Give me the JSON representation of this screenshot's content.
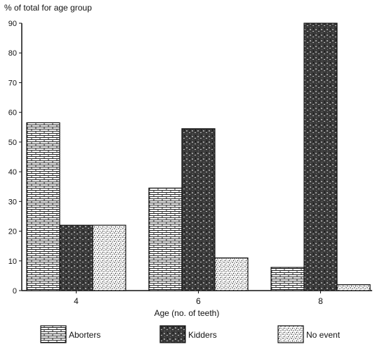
{
  "chart_data": {
    "type": "bar",
    "title": "% of total for age group",
    "xlabel": "Age (no. of teeth)",
    "ylabel": "",
    "categories": [
      "4",
      "6",
      "8"
    ],
    "series": [
      {
        "name": "Aborters",
        "values": [
          56.5,
          34.5,
          7.8
        ],
        "pattern": "brick"
      },
      {
        "name": "Kidders",
        "values": [
          22,
          54.5,
          90
        ],
        "pattern": "dark"
      },
      {
        "name": "No event",
        "values": [
          22,
          11,
          2
        ],
        "pattern": "dots"
      }
    ],
    "ylim": [
      0,
      90
    ],
    "yticks": [
      "0",
      "10",
      "20",
      "30",
      "40",
      "50",
      "60",
      "70",
      "80",
      "90"
    ],
    "grid": false,
    "legend_position": "bottom"
  }
}
